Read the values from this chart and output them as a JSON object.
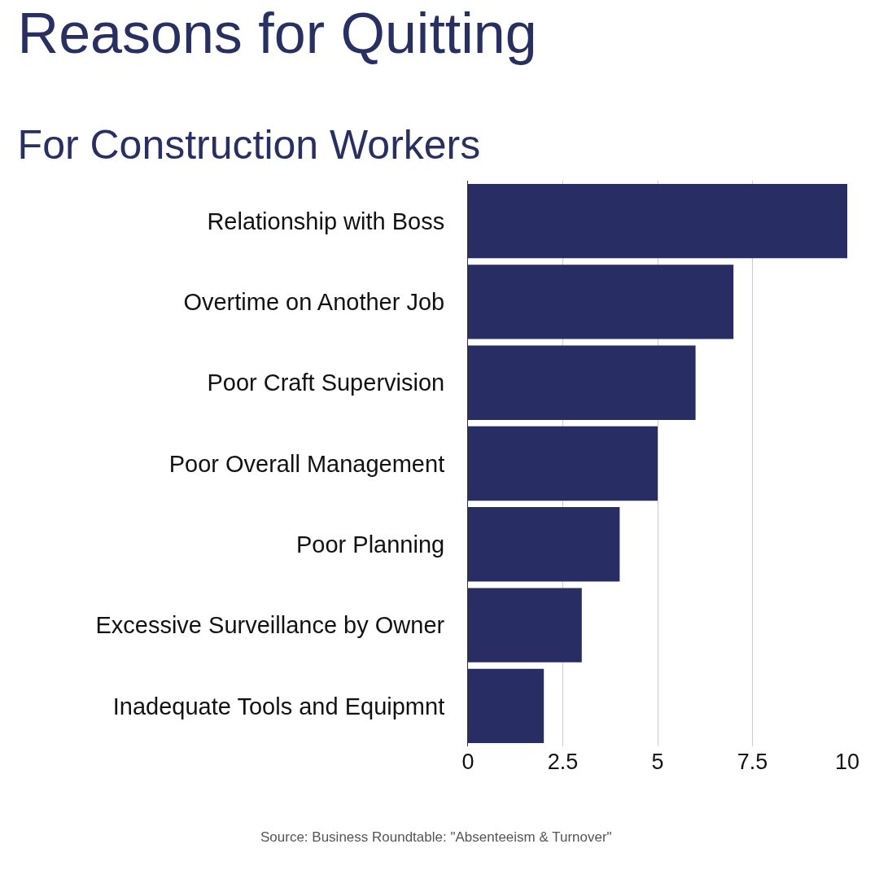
{
  "chart_data": {
    "type": "bar",
    "orientation": "horizontal",
    "title": "Reasons for Quitting",
    "subtitle": "For Construction Workers",
    "categories": [
      "Relationship with Boss",
      "Overtime on Another Job",
      "Poor Craft Supervision",
      "Poor Overall Management",
      "Poor Planning",
      "Excessive Surveillance by Owner",
      "Inadequate Tools and Equipmnt"
    ],
    "values": [
      10,
      7,
      6,
      5,
      4,
      3,
      2
    ],
    "color": "#282e64",
    "xlim": [
      0,
      10
    ],
    "xticks": [
      0,
      2.5,
      5,
      7.5,
      10
    ],
    "grid": "x",
    "annotations": [
      "Source: Business Roundtable: \"Absenteeism & Turnover\""
    ]
  }
}
